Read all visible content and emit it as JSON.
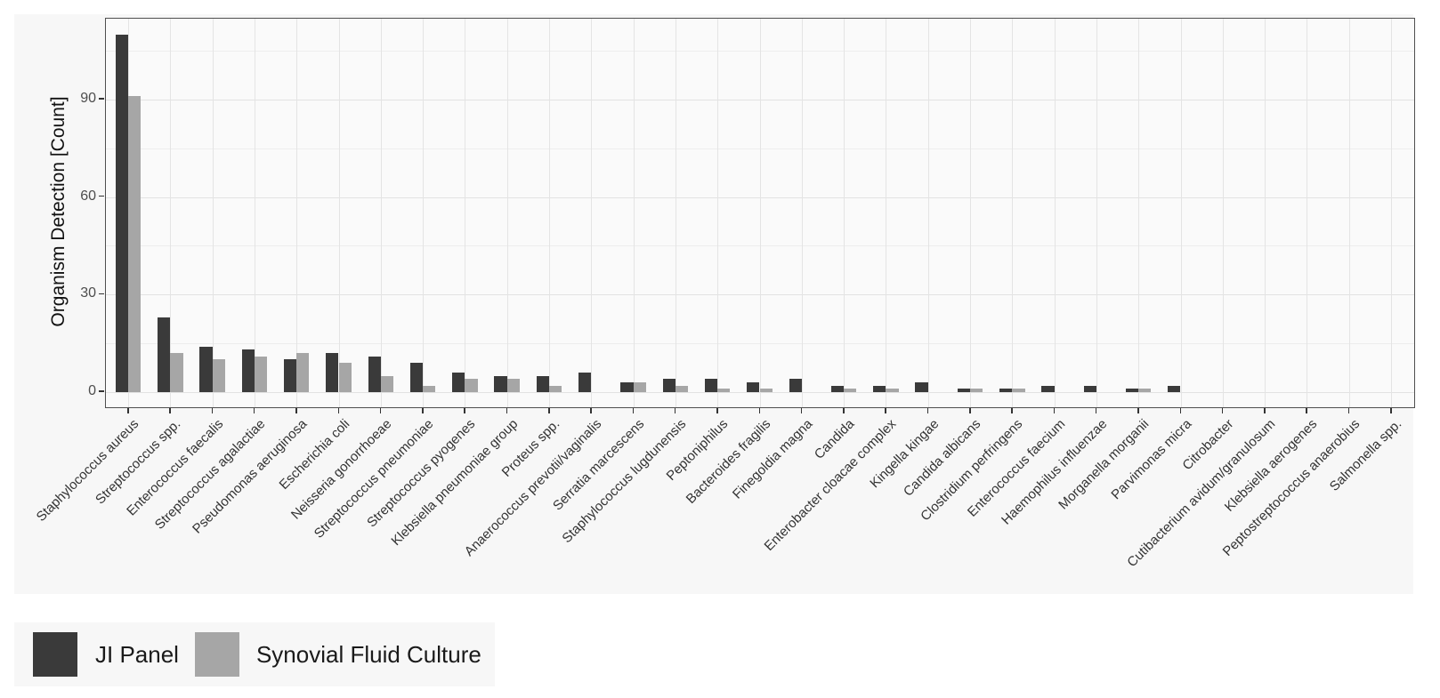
{
  "chart_data": {
    "type": "bar",
    "title": "",
    "xlabel": "",
    "ylabel": "Organism Detection [Count]",
    "ylim": [
      0,
      115
    ],
    "yticks": [
      0,
      30,
      60,
      90
    ],
    "y_minor_ticks": [
      15,
      45,
      75,
      105
    ],
    "grid": "on",
    "legend_position": "bottom-left",
    "categories": [
      "Staphylococcus aureus",
      "Streptococcus spp.",
      "Enterococcus faecalis",
      "Streptococcus agalactiae",
      "Pseudomonas aeruginosa",
      "Escherichia coli",
      "Neisseria gonorrhoeae",
      "Streptococcus pneumoniae",
      "Streptococcus pyogenes",
      "Klebsiella pneumoniae group",
      "Proteus spp.",
      "Anaerococcus prevotii/vaginalis",
      "Serratia marcescens",
      "Staphylococcus lugdunensis",
      "Peptoniphilus",
      "Bacteroides fragilis",
      "Finegoldia magna",
      "Candida",
      "Enterobacter cloacae complex",
      "Kingella kingae",
      "Candida albicans",
      "Clostridium perfringens",
      "Enterococcus faecium",
      "Haemophilus influenzae",
      "Morganella morganii",
      "Parvimonas micra",
      "Citrobacter",
      "Cutibacterium avidum/granulosum",
      "Klebsiella aerogenes",
      "Peptostreptococcus anaerobius",
      "Salmonella spp."
    ],
    "series": [
      {
        "name": "JI Panel",
        "color": "#3a3a3a",
        "values": [
          110,
          23,
          14,
          13,
          10,
          12,
          11,
          9,
          6,
          5,
          5,
          6,
          3,
          4,
          4,
          3,
          4,
          2,
          2,
          3,
          1,
          1,
          2,
          2,
          1,
          2,
          0,
          0,
          0,
          0,
          0
        ]
      },
      {
        "name": "Synovial Fluid Culture",
        "color": "#a6a6a6",
        "values": [
          91,
          12,
          10,
          11,
          12,
          9,
          5,
          2,
          4,
          4,
          2,
          0,
          3,
          2,
          1,
          1,
          0,
          1,
          1,
          0,
          1,
          1,
          0,
          0,
          1,
          0,
          0,
          0,
          0,
          0,
          0
        ]
      }
    ]
  },
  "colors": {
    "figure_background": "#f7f7f7",
    "panel_background": "#fafafa",
    "panel_border": "#4f4f4f",
    "grid_major": "#e2e2e2",
    "grid_minor": "#ededed",
    "axis_text": "#4d4d4d",
    "tick_mark": "#333333"
  }
}
